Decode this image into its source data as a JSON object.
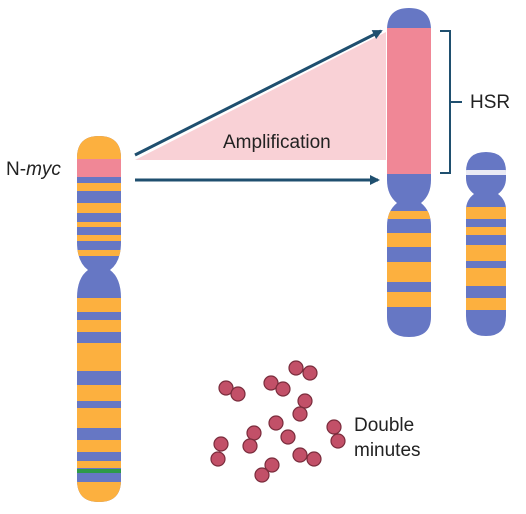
{
  "labels": {
    "gene_prefix": "N-",
    "gene_italic": "myc",
    "amplification": "Amplification",
    "hsr": "HSR",
    "double_minutes_line1": "Double",
    "double_minutes_line2": "minutes"
  },
  "colors": {
    "centromere_blue": "#6677c4",
    "band_orange": "#fcb03f",
    "gene_pink": "#f08796",
    "amplification_wedge": "#f9d1d6",
    "arrow_navy": "#1f4f6f",
    "marker_green": "#2e9a4a",
    "marker_white": "#eaeaf4",
    "dm_red": "#c25068",
    "dm_outline": "#7a2c3c"
  }
}
